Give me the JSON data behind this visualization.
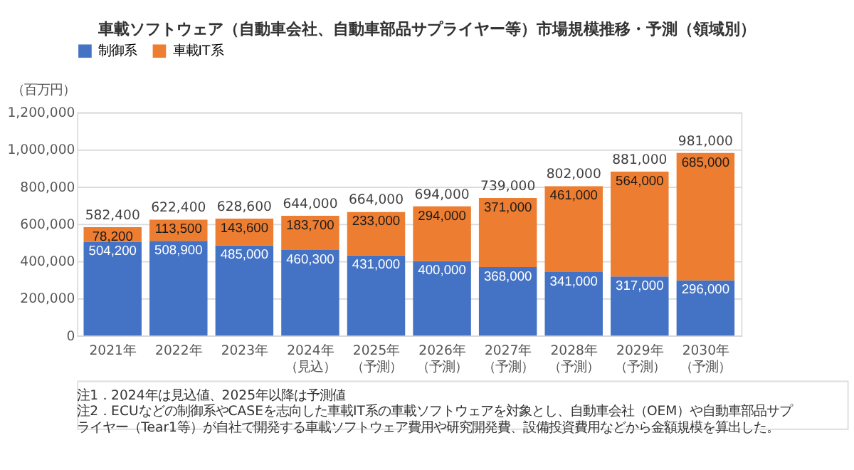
{
  "chart_data": {
    "type": "bar",
    "title": "車載ソフトウェア（自動車会社、自動車部品サプライヤー等）市場規模推移・予測（領域別）",
    "ylabel": "（百万円）",
    "categories": [
      "2021年",
      "2022年",
      "2023年",
      "2024年（見込）",
      "2025年（予測）",
      "2026年（予測）",
      "2027年（予測）",
      "2028年（予測）",
      "2029年（予測）",
      "2030年（予測）"
    ],
    "series": [
      {
        "name": "制御系",
        "color": "#4472c4",
        "values": [
          504200,
          508900,
          485000,
          460300,
          431000,
          400000,
          368000,
          341000,
          317000,
          296000
        ],
        "value_labels": [
          "504,200",
          "508,900",
          "485,000",
          "460,300",
          "431,000",
          "400,000",
          "368,000",
          "341,000",
          "317,000",
          "296,000"
        ]
      },
      {
        "name": "車載IT系",
        "color": "#ed7d31",
        "values": [
          78200,
          113500,
          143600,
          183700,
          233000,
          294000,
          371000,
          461000,
          564000,
          685000
        ],
        "value_labels": [
          "78,200",
          "113,500",
          "143,600",
          "183,700",
          "233,000",
          "294,000",
          "371,000",
          "461,000",
          "564,000",
          "685,000"
        ]
      }
    ],
    "stacked": true,
    "totals": [
      "582,400",
      "622,400",
      "628,600",
      "644,000",
      "664,000",
      "694,000",
      "739,000",
      "802,000",
      "881,000",
      "981,000"
    ],
    "ylim": [
      0,
      1200000
    ],
    "yticks": [
      0,
      {
        "value": 200000,
        "label": "200,000"
      },
      {
        "value": 400000,
        "label": "400,000"
      },
      {
        "value": 600000,
        "label": "600,000"
      },
      {
        "value": 800000,
        "label": "800,000"
      },
      {
        "value": 1000000,
        "label": "1,000,000"
      },
      {
        "value": 1200000,
        "label": "1,200,000"
      }
    ],
    "grid": "y",
    "legend": "top",
    "annotations": [
      "注1．2024年は見込値、2025年以降は予測値",
      "注2．ECUなどの制御系やCASEを志向した車載IT系の車載ソフトウェアを対象とし、自動車会社（OEM）や自動車部品サプライヤー（Tear1等）が自社で開発する車載ソフトウェア費用や研究開発費、設備投資費用などから金額規模を算出した。"
    ]
  }
}
